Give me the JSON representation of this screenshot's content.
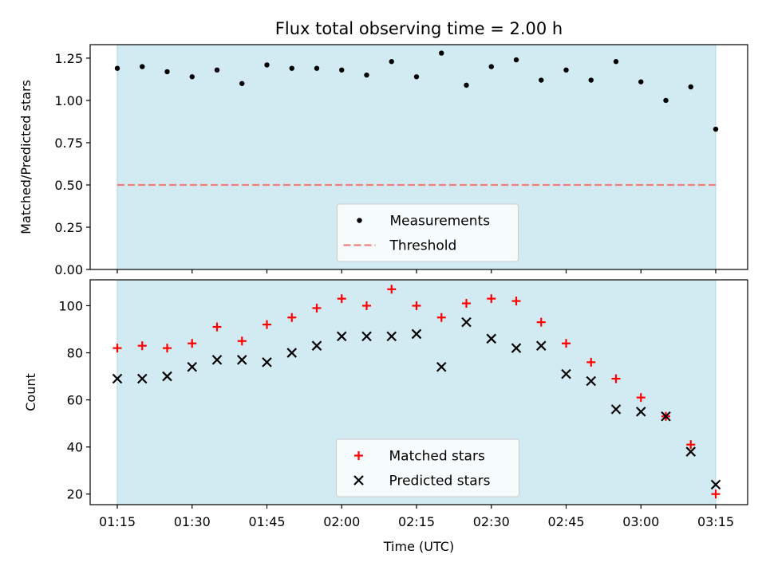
{
  "chart_data": {
    "title": "Flux total observing time = 2.00 h",
    "xlabel": "Time (UTC)",
    "x_ticks": [
      "01:15",
      "01:30",
      "01:45",
      "02:00",
      "02:15",
      "02:30",
      "02:45",
      "03:00",
      "03:15"
    ],
    "shade_color": "#add8e6",
    "panels": [
      {
        "type": "scatter",
        "ylabel": "Matched/Predicted stars",
        "ylim": [
          0.0,
          1.33
        ],
        "y_ticks": [
          0.0,
          0.25,
          0.5,
          0.75,
          1.0,
          1.25
        ],
        "y_tick_labels": [
          "0.00",
          "0.25",
          "0.50",
          "0.75",
          "1.00",
          "1.25"
        ],
        "legend_position": "bottom-center",
        "series": [
          {
            "name": "Measurements",
            "marker": "dot",
            "color": "#000000",
            "x": [
              "01:15",
              "01:20",
              "01:25",
              "01:30",
              "01:35",
              "01:40",
              "01:45",
              "01:50",
              "01:55",
              "02:00",
              "02:05",
              "02:10",
              "02:15",
              "02:20",
              "02:25",
              "02:30",
              "02:35",
              "02:40",
              "02:45",
              "02:50",
              "02:55",
              "03:00",
              "03:05",
              "03:10",
              "03:15"
            ],
            "y": [
              1.19,
              1.2,
              1.17,
              1.14,
              1.18,
              1.1,
              1.21,
              1.19,
              1.19,
              1.18,
              1.15,
              1.23,
              1.14,
              1.28,
              1.09,
              1.2,
              1.24,
              1.12,
              1.18,
              1.12,
              1.23,
              1.11,
              1.0,
              1.08,
              0.83
            ]
          }
        ],
        "threshold": {
          "name": "Threshold",
          "y": 0.5,
          "color": "#f08080",
          "style": "dashed"
        }
      },
      {
        "type": "scatter",
        "ylabel": "Count",
        "ylim": [
          15.5,
          111
        ],
        "y_ticks": [
          20,
          40,
          60,
          80,
          100
        ],
        "y_tick_labels": [
          "20",
          "40",
          "60",
          "80",
          "100"
        ],
        "legend_position": "bottom-center",
        "series": [
          {
            "name": "Matched stars",
            "marker": "plus",
            "color": "#ff0000",
            "x": [
              "01:15",
              "01:20",
              "01:25",
              "01:30",
              "01:35",
              "01:40",
              "01:45",
              "01:50",
              "01:55",
              "02:00",
              "02:05",
              "02:10",
              "02:15",
              "02:20",
              "02:25",
              "02:30",
              "02:35",
              "02:40",
              "02:45",
              "02:50",
              "02:55",
              "03:00",
              "03:05",
              "03:10",
              "03:15"
            ],
            "y": [
              82,
              83,
              82,
              84,
              91,
              85,
              92,
              95,
              99,
              103,
              100,
              107,
              100,
              95,
              101,
              103,
              102,
              93,
              84,
              76,
              69,
              61,
              53,
              41,
              20
            ]
          },
          {
            "name": "Predicted stars",
            "marker": "x",
            "color": "#000000",
            "x": [
              "01:15",
              "01:20",
              "01:25",
              "01:30",
              "01:35",
              "01:40",
              "01:45",
              "01:50",
              "01:55",
              "02:00",
              "02:05",
              "02:10",
              "02:15",
              "02:20",
              "02:25",
              "02:30",
              "02:35",
              "02:40",
              "02:45",
              "02:50",
              "02:55",
              "03:00",
              "03:05",
              "03:10",
              "03:15"
            ],
            "y": [
              69,
              69,
              70,
              74,
              77,
              77,
              76,
              80,
              83,
              87,
              87,
              87,
              88,
              74,
              93,
              86,
              82,
              83,
              71,
              68,
              56,
              55,
              53,
              38,
              24
            ]
          }
        ]
      }
    ]
  }
}
